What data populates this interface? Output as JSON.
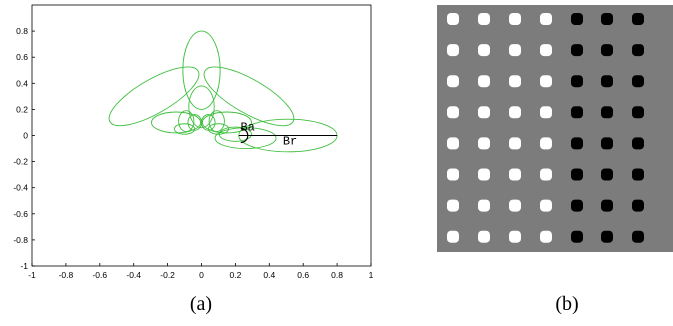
{
  "figure": {
    "panels": [
      {
        "caption": "(a)"
      },
      {
        "caption": "(b)"
      }
    ]
  },
  "chart_data": {
    "type": "line",
    "title": "",
    "xlabel": "",
    "ylabel": "",
    "xlim": [
      -1,
      1
    ],
    "ylim": [
      -1,
      1
    ],
    "grid": false,
    "x_ticks": [
      "-1",
      "-0.8",
      "-0.6",
      "-0.4",
      "-0.2",
      "0",
      "0.2",
      "0.4",
      "0.6",
      "0.8",
      "1"
    ],
    "y_ticks": [
      "0.8",
      "0.6",
      "0.4",
      "0.2",
      "0",
      "-0.2",
      "-0.4",
      "-0.6",
      "-0.8",
      "-1"
    ],
    "lobe_color": "#3fbf3f",
    "lobes": [
      {
        "center": [
          0.0,
          0.5
        ],
        "semi_axes": [
          0.11,
          0.3
        ],
        "angle_deg": 0
      },
      {
        "center": [
          -0.28,
          0.3
        ],
        "semi_axes": [
          0.3,
          0.13
        ],
        "angle_deg": -30
      },
      {
        "center": [
          0.28,
          0.3
        ],
        "semi_axes": [
          0.3,
          0.13
        ],
        "angle_deg": 30
      },
      {
        "center": [
          0.51,
          0.0
        ],
        "semi_axes": [
          0.29,
          0.125
        ],
        "angle_deg": 0
      },
      {
        "center": [
          0.0,
          0.22
        ],
        "semi_axes": [
          0.075,
          0.16
        ],
        "angle_deg": 0
      },
      {
        "center": [
          -0.15,
          0.1
        ],
        "semi_axes": [
          0.145,
          0.08
        ],
        "angle_deg": 0
      },
      {
        "center": [
          0.15,
          0.1
        ],
        "semi_axes": [
          0.145,
          0.08
        ],
        "angle_deg": 0
      },
      {
        "center": [
          -0.09,
          0.11
        ],
        "semi_axes": [
          0.045,
          0.08
        ],
        "angle_deg": 0
      },
      {
        "center": [
          0.09,
          0.11
        ],
        "semi_axes": [
          0.045,
          0.08
        ],
        "angle_deg": 0
      },
      {
        "center": [
          -0.04,
          0.1
        ],
        "semi_axes": [
          0.04,
          0.06
        ],
        "angle_deg": 0
      },
      {
        "center": [
          0.04,
          0.1
        ],
        "semi_axes": [
          0.04,
          0.06
        ],
        "angle_deg": 0
      },
      {
        "center": [
          -0.1,
          0.05
        ],
        "semi_axes": [
          0.06,
          0.04
        ],
        "angle_deg": 0
      },
      {
        "center": [
          0.1,
          0.05
        ],
        "semi_axes": [
          0.06,
          0.04
        ],
        "angle_deg": 0
      },
      {
        "center": [
          0.26,
          -0.02
        ],
        "semi_axes": [
          0.18,
          0.08
        ],
        "angle_deg": 0
      },
      {
        "center": [
          0.2,
          0.01
        ],
        "semi_axes": [
          0.095,
          0.055
        ],
        "angle_deg": 0
      }
    ],
    "annotations": [
      {
        "label": "Ba",
        "anchor": [
          0.23,
          0.04
        ]
      },
      {
        "label": "Br",
        "anchor": [
          0.48,
          -0.07
        ]
      }
    ],
    "radius_line": {
      "from": [
        0.22,
        0.0
      ],
      "to": [
        0.8,
        0.0
      ]
    }
  },
  "grid_image": {
    "rows": 8,
    "cols": 7,
    "white_cols": 4,
    "background": "#7c7c7c",
    "white_dot": "#ffffff",
    "black_dot": "#000000"
  }
}
